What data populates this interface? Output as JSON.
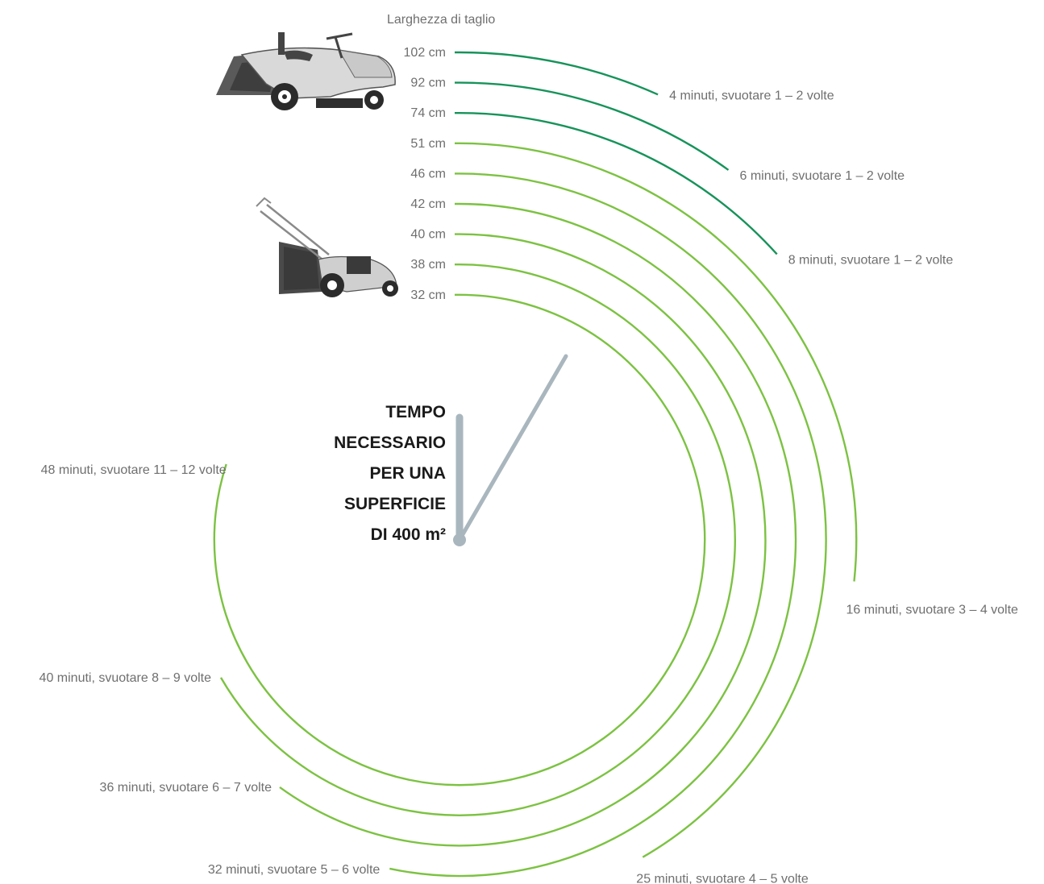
{
  "chart_data": {
    "type": "radial-bar",
    "title_lines": [
      "TEMPO",
      "NECESSARIO",
      "PER UNA",
      "SUPERFICIE",
      "DI 400 m²"
    ],
    "axis_label": "Larghezza di taglio",
    "unit": "minuti",
    "scale_max_minutes": 60,
    "series": [
      {
        "width": "102 cm",
        "minutes": 4,
        "result": "4 minuti, svuotare 1 – 2 volte",
        "machine": "tractor"
      },
      {
        "width": "92 cm",
        "minutes": 6,
        "result": "6 minuti, svuotare 1 – 2 volte",
        "machine": "tractor"
      },
      {
        "width": "74 cm",
        "minutes": 8,
        "result": "8 minuti, svuotare 1 – 2 volte",
        "machine": "tractor"
      },
      {
        "width": "51 cm",
        "minutes": 16,
        "result": "16 minuti, svuotare 3 – 4 volte",
        "machine": "mower"
      },
      {
        "width": "46 cm",
        "minutes": 25,
        "result": "25 minuti, svuotare 4 – 5 volte",
        "machine": "mower"
      },
      {
        "width": "42 cm",
        "minutes": 32,
        "result": "32 minuti, svuotare 5 – 6 volte",
        "machine": "mower"
      },
      {
        "width": "40 cm",
        "minutes": 36,
        "result": "36 minuti, svuotare 6 – 7 volte",
        "machine": "mower"
      },
      {
        "width": "38 cm",
        "minutes": 40,
        "result": "40 minuti, svuotare 8 – 9 volte",
        "machine": "mower"
      },
      {
        "width": "32 cm",
        "minutes": 48,
        "result": "48 minuti, svuotare 11 – 12 volte",
        "machine": "mower"
      }
    ],
    "colors": {
      "tractor": "#17935a",
      "mower": "#7cc242",
      "hands": "#a9b6be",
      "label": "#6f6f6f",
      "title": "#1a1a1a"
    },
    "icons": [
      "riding-mower-icon",
      "push-mower-icon"
    ]
  }
}
